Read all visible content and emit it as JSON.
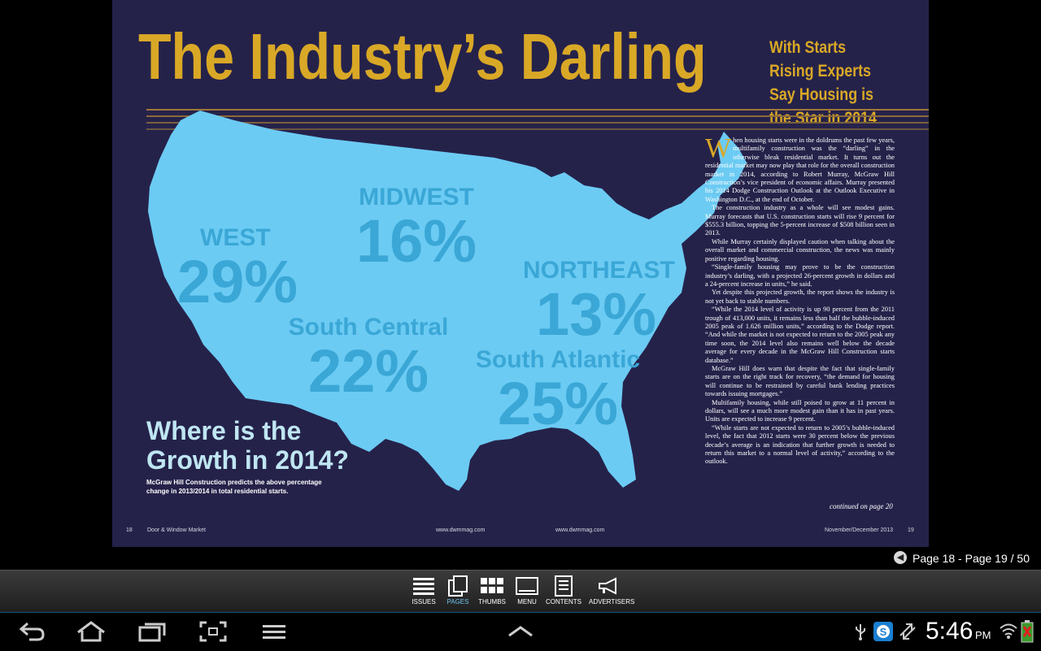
{
  "magazine": {
    "title": "The Industry’s  Darling",
    "subtitle": "With Starts Rising Experts Say Housing is the Star in 2014",
    "regions": [
      {
        "name": "MIDWEST",
        "pct": "16%"
      },
      {
        "name": "WEST",
        "pct": "29%"
      },
      {
        "name": "NORTHEAST",
        "pct": "13%"
      },
      {
        "name": "South Central",
        "pct": "22%"
      },
      {
        "name": "South Atlantic",
        "pct": "25%"
      }
    ],
    "growth_heading": "Where is the Growth in 2014?",
    "growth_caption": "McGraw Hill Construction predicts the above percentage change in 2013/2014 in total residential starts.",
    "dropcap": "W",
    "article": [
      "hen housing starts were in the doldrums the past few years, multifamily construction was the “darling” in the otherwise bleak residential market. It turns out the residential market may now play that role for the overall construction market in 2014, according to Robert Murray, McGraw Hill Construction’s vice president of economic affairs. Murray presented his 2014 Dodge Construction Outlook at the Outlook Executive in Washington D.C., at the end of October.",
      "The construction industry as a whole will see modest gains. Murray forecasts that U.S. construction starts will rise 9 percent for $555.3 billion, topping the 5-percent increase of $508 billion seen in 2013.",
      "While Murray certainly displayed caution when talking about the overall market and commercial construction, the news was mainly positive regarding housing.",
      "“Single-family housing may prove to be the construction industry’s darling, with a projected 26-percent growth in dollars and a 24-percent increase in units,” he said.",
      "Yet despite this projected growth, the report shows the industry is not yet back to stable numbers.",
      "“While the 2014 level of activity is up 90 percent from the 2011 trough of 413,000 units, it remains less than half the bubble-induced 2005 peak of 1.626 million units,” according to the Dodge report. “And while the market is not expected to return to the 2005 peak any time soon, the 2014 level also remains well below the decade average for every decade in the McGraw Hill Construction starts database.”",
      "McGraw Hill does warn that despite the fact that single-family starts are on the right track for recovery, “the demand for housing will continue to be restrained by careful bank lending practices towards issuing mortgages.”",
      "Multifamily housing, while still poised to grow at 11 percent in dollars, will see a much more modest gain than it has in past years. Units are expected to increase 9 percent.",
      "“While starts are not expected to return to 2005’s bubble-induced level, the fact that 2012 starts were 30 percent below the previous decade’s average is an indication that further growth is needed to return this market to a normal level of activity,” according to the outlook."
    ],
    "continued": "continued on page 20",
    "footer": {
      "left_page": "18",
      "left_mag": "Door & Window Market",
      "left_url": "www.dwmmag.com",
      "right_url": "www.dwmmag.com",
      "right_date": "November/December 2013",
      "right_page": "19"
    }
  },
  "viewer": {
    "page_indicator": "Page 18 - Page 19 / 50",
    "toolbar": [
      {
        "label": "ISSUES",
        "icon": "issues-icon"
      },
      {
        "label": "PAGES",
        "icon": "pages-icon"
      },
      {
        "label": "THUMBS",
        "icon": "thumbs-icon"
      },
      {
        "label": "MENU",
        "icon": "menu-icon"
      },
      {
        "label": "CONTENTS",
        "icon": "contents-icon"
      },
      {
        "label": "ADVERTISERS",
        "icon": "advertisers-icon"
      }
    ],
    "active_tab": "PAGES"
  },
  "system": {
    "time": "5:46",
    "ampm": "PM"
  },
  "colors": {
    "page_bg": "#25224a",
    "gold": "#d9a826",
    "map": "#6ccbf3",
    "region_text": "#3aa7d6",
    "active": "#6fc3ee"
  }
}
